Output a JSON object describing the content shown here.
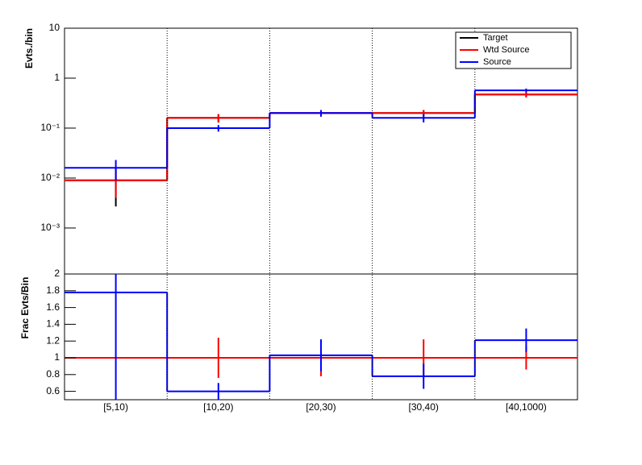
{
  "chart_data": [
    {
      "type": "step",
      "y_label": "Evts./bin",
      "log_y": true,
      "ylim": [
        0.00012,
        10
      ],
      "yticks": [
        {
          "value": 0.001,
          "label": "10⁻³"
        },
        {
          "value": 0.01,
          "label": "10⁻²"
        },
        {
          "value": 0.1,
          "label": "10⁻¹"
        },
        1,
        10
      ],
      "legend": "top-right",
      "series": [
        {
          "name": "Target",
          "color": "#000000",
          "values": [
            0.009,
            0.16,
            0.2,
            0.2,
            0.47
          ],
          "errors": [
            0.0063,
            0.03,
            0.03,
            0.03,
            0.06
          ]
        },
        {
          "name": "Wtd Source",
          "color": "#ff0000",
          "values": [
            0.009,
            0.16,
            0.2,
            0.2,
            0.47
          ],
          "errors": [
            0.005,
            0.03,
            0.03,
            0.03,
            0.06
          ]
        },
        {
          "name": "Source",
          "color": "#0000ff",
          "values": [
            0.016,
            0.1,
            0.2,
            0.16,
            0.57
          ],
          "errors": [
            0.007,
            0.015,
            0.03,
            0.03,
            0.05
          ]
        }
      ]
    },
    {
      "type": "step",
      "y_label": "Frac Evts/Bin",
      "categories": [
        "[5,10)",
        "[10,20)",
        "[20,30)",
        "[30,40)",
        "[40,1000)"
      ],
      "ylim": [
        0.5,
        2
      ],
      "yticks": [
        0.6,
        0.8,
        1,
        1.2,
        1.4,
        1.6,
        1.8,
        2
      ],
      "series": [
        {
          "color": "#ff0000",
          "values": [
            1,
            1,
            1,
            1,
            1
          ],
          "errors": [
            null,
            0.24,
            0.22,
            0.22,
            0.14
          ]
        },
        {
          "color": "#0000ff",
          "values": [
            1.78,
            0.6,
            1.03,
            0.78,
            1.21
          ],
          "errors": [
            1.3,
            0.1,
            0.19,
            0.15,
            0.14
          ]
        }
      ]
    }
  ]
}
